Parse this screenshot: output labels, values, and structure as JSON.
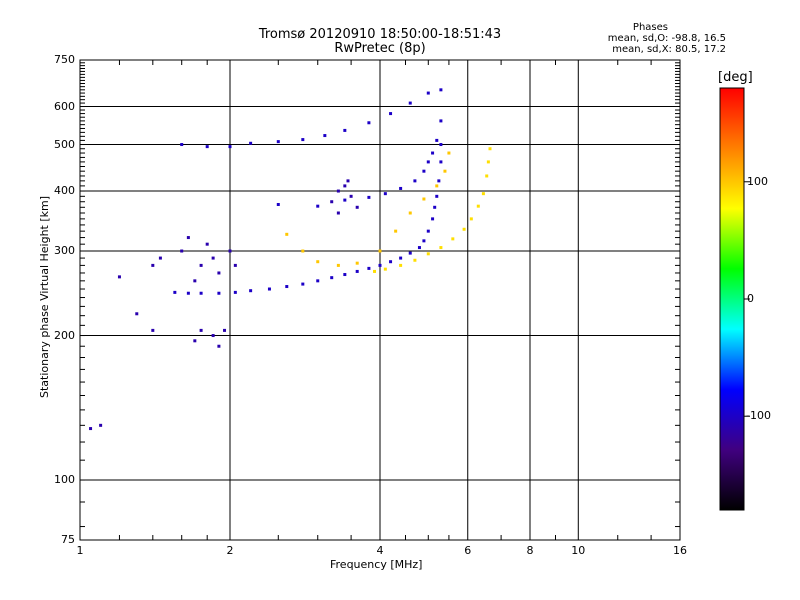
{
  "title_line1": "Tromsø 20120910 18:50:00-18:51:43",
  "title_line2": "RwPretec (8p)",
  "stats": {
    "heading": "Phases",
    "line_o": "mean, sd,O: -98.8, 16.5",
    "line_x": "mean, sd,X:  80.5, 17.2"
  },
  "chart_data": {
    "type": "scatter",
    "xlabel": "Frequency [MHz]",
    "ylabel": "Stationary phase Virtual Height [km]",
    "xscale": "log",
    "yscale": "log",
    "xlim": [
      1,
      16
    ],
    "ylim": [
      75,
      750
    ],
    "x_ticks": [
      1,
      2,
      4,
      6,
      8,
      10,
      16
    ],
    "x_tick_labels": [
      "1",
      "2",
      "4",
      "6",
      "8",
      "10",
      "16"
    ],
    "x_grid": [
      2,
      4,
      6,
      8,
      10
    ],
    "y_ticks": [
      75,
      100,
      200,
      300,
      400,
      500,
      600,
      750
    ],
    "y_tick_labels": [
      "75",
      "100",
      "200",
      "300",
      "400",
      "500",
      "600",
      "750"
    ],
    "y_grid": [
      100,
      200,
      300,
      400,
      500,
      600
    ],
    "grid": true,
    "colorbar": {
      "label": "[deg]",
      "range": [
        -180,
        180
      ],
      "ticks": [
        100,
        0,
        -100
      ],
      "tick_labels": [
        "100",
        "0",
        "-100"
      ],
      "colors": [
        "#ff0000",
        "#ff8000",
        "#ffff00",
        "#00ff00",
        "#00ffff",
        "#0000ff",
        "#400080",
        "#000000"
      ]
    },
    "series": [
      {
        "trace": "O-mode F-layer trace",
        "phase_deg": -100,
        "points": [
          [
            1.55,
            246
          ],
          [
            1.65,
            245
          ],
          [
            1.75,
            245
          ],
          [
            1.9,
            245
          ],
          [
            2.05,
            246
          ],
          [
            2.2,
            248
          ],
          [
            2.4,
            250
          ],
          [
            2.6,
            253
          ],
          [
            2.8,
            256
          ],
          [
            3.0,
            260
          ],
          [
            3.2,
            264
          ],
          [
            3.4,
            268
          ],
          [
            3.6,
            272
          ],
          [
            3.8,
            276
          ],
          [
            4.0,
            280
          ],
          [
            4.2,
            285
          ],
          [
            4.4,
            290
          ],
          [
            4.6,
            297
          ],
          [
            4.8,
            305
          ],
          [
            4.9,
            315
          ],
          [
            5.0,
            330
          ],
          [
            5.1,
            350
          ],
          [
            5.15,
            370
          ],
          [
            5.2,
            390
          ],
          [
            5.25,
            420
          ],
          [
            5.3,
            460
          ],
          [
            5.3,
            500
          ]
        ]
      },
      {
        "trace": "X-mode F-layer trace",
        "phase_deg": 90,
        "points": [
          [
            3.9,
            272
          ],
          [
            4.1,
            275
          ],
          [
            4.4,
            280
          ],
          [
            4.7,
            287
          ],
          [
            5.0,
            296
          ],
          [
            5.3,
            305
          ],
          [
            5.6,
            318
          ],
          [
            5.9,
            333
          ],
          [
            6.1,
            350
          ],
          [
            6.3,
            372
          ],
          [
            6.45,
            395
          ],
          [
            6.55,
            430
          ],
          [
            6.6,
            460
          ],
          [
            6.65,
            490
          ]
        ]
      },
      {
        "trace": "Secondary trace (2x echo)",
        "phase_deg": -100,
        "points": [
          [
            2.5,
            375
          ],
          [
            3.0,
            372
          ],
          [
            3.4,
            383
          ],
          [
            3.8,
            388
          ],
          [
            4.1,
            395
          ],
          [
            4.4,
            405
          ],
          [
            4.7,
            420
          ],
          [
            4.9,
            440
          ],
          [
            5.0,
            460
          ],
          [
            5.1,
            480
          ],
          [
            5.2,
            510
          ],
          [
            5.3,
            560
          ]
        ]
      },
      {
        "trace": "Secondary X trace",
        "phase_deg": 100,
        "points": [
          [
            2.6,
            325
          ],
          [
            2.8,
            300
          ],
          [
            3.0,
            285
          ],
          [
            3.3,
            280
          ],
          [
            3.6,
            283
          ],
          [
            4.0,
            300
          ],
          [
            4.3,
            330
          ],
          [
            4.6,
            360
          ],
          [
            4.9,
            385
          ],
          [
            5.2,
            410
          ],
          [
            5.4,
            440
          ],
          [
            5.5,
            480
          ]
        ]
      },
      {
        "trace": "Upper echo band",
        "phase_deg": -100,
        "points": [
          [
            1.6,
            500
          ],
          [
            1.8,
            495
          ],
          [
            2.0,
            495
          ],
          [
            2.2,
            503
          ],
          [
            2.5,
            507
          ],
          [
            2.8,
            512
          ],
          [
            3.1,
            522
          ],
          [
            3.4,
            535
          ],
          [
            3.8,
            555
          ],
          [
            4.2,
            580
          ],
          [
            4.6,
            610
          ],
          [
            5.0,
            640
          ],
          [
            5.3,
            650
          ]
        ]
      },
      {
        "trace": "Spread echo clusters",
        "phase_deg": -110,
        "points": [
          [
            1.4,
            280
          ],
          [
            1.45,
            290
          ],
          [
            1.6,
            300
          ],
          [
            1.65,
            320
          ],
          [
            1.7,
            260
          ],
          [
            1.75,
            280
          ],
          [
            1.8,
            310
          ],
          [
            1.85,
            290
          ],
          [
            1.9,
            270
          ],
          [
            2.0,
            300
          ],
          [
            2.05,
            280
          ],
          [
            1.7,
            195
          ],
          [
            1.75,
            205
          ],
          [
            1.85,
            200
          ],
          [
            1.9,
            190
          ],
          [
            1.95,
            205
          ],
          [
            3.2,
            380
          ],
          [
            3.3,
            400
          ],
          [
            3.4,
            410
          ],
          [
            3.5,
            390
          ],
          [
            3.6,
            370
          ],
          [
            3.45,
            420
          ],
          [
            3.3,
            360
          ],
          [
            1.05,
            128
          ],
          [
            1.1,
            130
          ],
          [
            1.3,
            222
          ],
          [
            1.4,
            205
          ],
          [
            1.2,
            265
          ]
        ]
      }
    ]
  }
}
